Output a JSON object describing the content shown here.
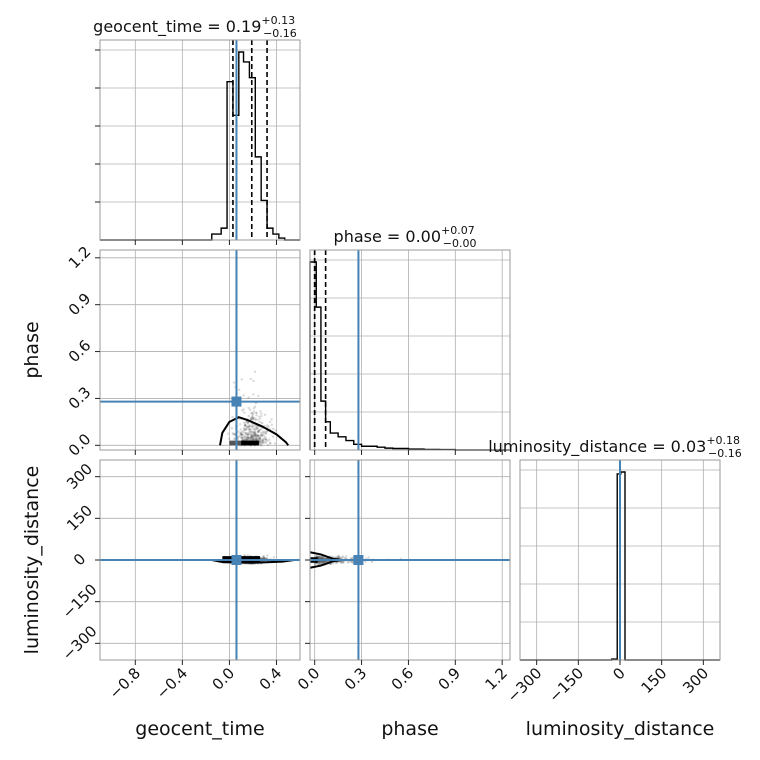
{
  "chart_data": {
    "type": "corner",
    "parameters": [
      "geocent_time",
      "phase",
      "luminosity_distance"
    ],
    "axis_labels": {
      "geocent_time": "geocent_time",
      "phase": "phase",
      "luminosity_distance": "luminosity_distance"
    },
    "titles": {
      "geocent_time": {
        "label": "geocent_time = 0.19",
        "plus": "+0.13",
        "minus": "−0.16"
      },
      "phase": {
        "label": "phase = 0.00",
        "plus": "+0.07",
        "minus": "−0.00"
      },
      "luminosity_distance": {
        "label": "luminosity_distance = 0.03",
        "plus": "+0.18",
        "minus": "−0.16"
      }
    },
    "ranges": {
      "geocent_time": [
        -1.1,
        0.6
      ],
      "phase": [
        -0.03,
        1.25
      ],
      "luminosity_distance": [
        -360,
        360
      ]
    },
    "ticks": {
      "geocent_time": {
        "values": [
          -0.8,
          -0.4,
          0.0,
          0.4
        ],
        "labels": [
          "−0.8",
          "−0.4",
          "0.0",
          "0.4"
        ]
      },
      "phase": {
        "values": [
          0.0,
          0.3,
          0.6,
          0.9,
          1.2
        ],
        "labels": [
          "0.0",
          "0.3",
          "0.6",
          "0.9",
          "1.2"
        ]
      },
      "luminosity_distance": {
        "values": [
          -300,
          -150,
          0,
          150,
          300
        ],
        "labels": [
          "−300",
          "−150",
          "0",
          "150",
          "300"
        ]
      }
    },
    "truths": {
      "geocent_time": 0.06,
      "phase": 0.28,
      "luminosity_distance": 0
    },
    "quantiles": {
      "geocent_time": [
        0.03,
        0.19,
        0.32
      ],
      "phase": [
        0.0,
        0.0,
        0.07
      ],
      "luminosity_distance": [
        -0.13,
        0.03,
        0.21
      ]
    },
    "histograms": {
      "geocent_time": {
        "edges": [
          -1.1,
          -0.15,
          -0.07,
          -0.02,
          0.03,
          0.08,
          0.12,
          0.17,
          0.22,
          0.27,
          0.32,
          0.37,
          0.42,
          0.47,
          0.52,
          0.6
        ],
        "counts": [
          0,
          0.03,
          0.06,
          0.8,
          0.63,
          0.95,
          0.9,
          0.82,
          0.42,
          0.2,
          0.06,
          0.03,
          0.01,
          0,
          0
        ]
      },
      "phase": {
        "edges": [
          -0.03,
          0.01,
          0.04,
          0.07,
          0.1,
          0.15,
          0.2,
          0.25,
          0.3,
          0.35,
          0.4,
          0.45,
          0.5,
          0.6,
          0.7,
          0.8,
          0.9,
          1.25
        ],
        "counts": [
          1.0,
          0.76,
          0.26,
          0.15,
          0.09,
          0.07,
          0.05,
          0.03,
          0.02,
          0.02,
          0.015,
          0.01,
          0.008,
          0.005,
          0.003,
          0.002,
          0
        ]
      },
      "luminosity_distance": {
        "edges": [
          -360,
          -30,
          -10,
          3,
          18,
          360
        ],
        "counts": [
          0,
          0.005,
          0.98,
          0.99,
          0
        ]
      }
    },
    "grid": true
  }
}
